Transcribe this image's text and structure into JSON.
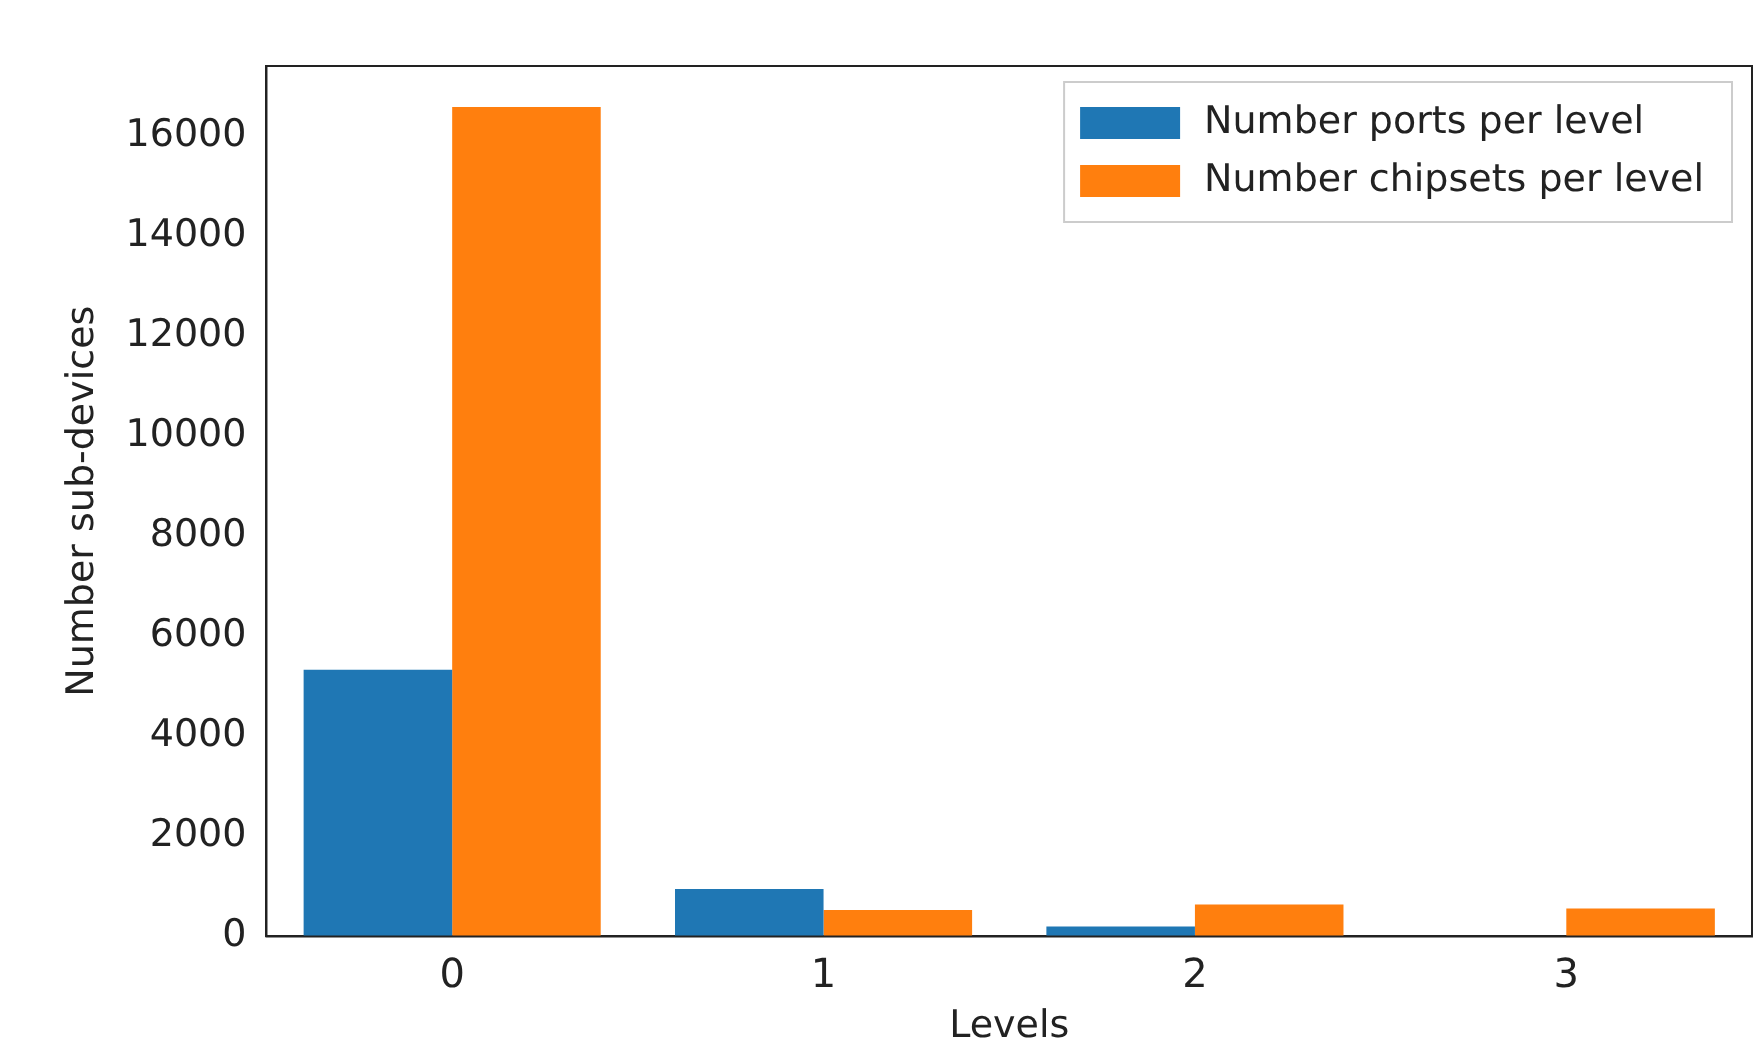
{
  "chart_data": {
    "type": "bar",
    "xlabel": "Levels",
    "ylabel": "Number sub-devices",
    "categories": [
      "0",
      "1",
      "2",
      "3"
    ],
    "series": [
      {
        "name": "Number ports per level",
        "color": "#1f77b4",
        "values": [
          5330,
          950,
          200,
          0
        ]
      },
      {
        "name": "Number chipsets per level",
        "color": "#ff7f0e",
        "values": [
          16580,
          530,
          640,
          560
        ]
      }
    ],
    "ylim": [
      0,
      17400
    ],
    "yticks": [
      0,
      2000,
      4000,
      6000,
      8000,
      10000,
      12000,
      14000,
      16000
    ],
    "grid": false,
    "legend": "top right"
  }
}
